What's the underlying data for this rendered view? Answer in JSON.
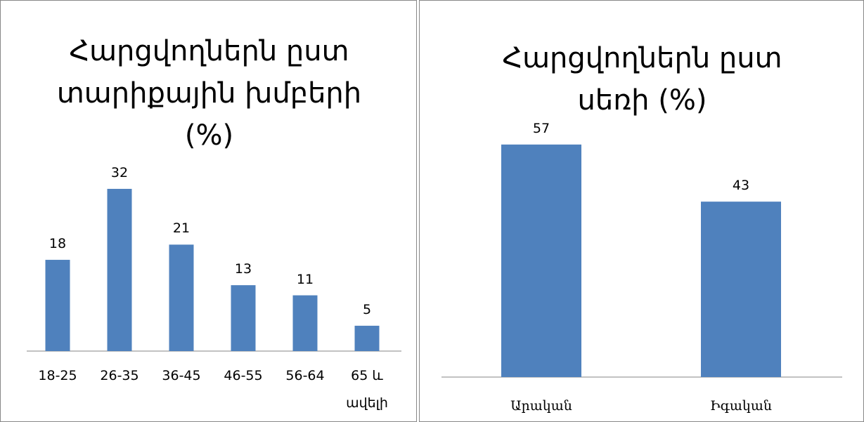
{
  "chart_data": [
    {
      "type": "bar",
      "title": "Հարցվողներն ըստ տարիքային խմբերի (%)",
      "categories": [
        "18-25",
        "26-35",
        "36-45",
        "46-55",
        "56-64",
        "65 և ավելի"
      ],
      "values": [
        18,
        32,
        21,
        13,
        11,
        5
      ],
      "color": "#4f81bd"
    },
    {
      "type": "bar",
      "title": "Հարցվողներն ըստ սեռի (%)",
      "categories": [
        "Արական",
        "Իգական"
      ],
      "values": [
        57,
        43
      ],
      "color": "#4f81bd"
    }
  ]
}
